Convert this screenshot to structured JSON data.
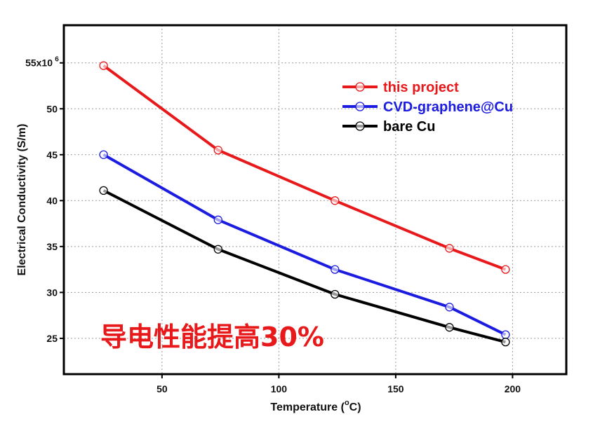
{
  "chart_data": {
    "type": "line",
    "xlabel": "Temperature (",
    "xlabel_unit_sup": "o",
    "xlabel_unit": "C)",
    "ylabel": "Electrical Conductivity (S/m)",
    "xlim": [
      8,
      223
    ],
    "ylim": [
      21.1,
      59.1
    ],
    "xticks": [
      50,
      100,
      150,
      200
    ],
    "yticks": [
      25,
      30,
      35,
      40,
      45,
      50,
      55
    ],
    "ytick_labels": [
      "25",
      "30",
      "35",
      "40",
      "45",
      "50",
      "55x10"
    ],
    "ytick_top_sup": "6",
    "grid": true,
    "legend_position": "top-right",
    "annotation": "导电性能提高30%",
    "series": [
      {
        "name": "this project",
        "color": "#e8191b",
        "x": [
          25,
          74,
          124,
          173,
          197
        ],
        "y": [
          54.7,
          45.5,
          40.0,
          34.8,
          32.5
        ]
      },
      {
        "name": "CVD-graphene@Cu",
        "color": "#1c1ce0",
        "x": [
          25,
          74,
          124,
          173,
          197
        ],
        "y": [
          45.0,
          37.9,
          32.5,
          28.4,
          25.4
        ]
      },
      {
        "name": "bare Cu",
        "color": "#000000",
        "x": [
          25,
          74,
          124,
          173,
          197
        ],
        "y": [
          41.1,
          34.7,
          29.8,
          26.2,
          24.6
        ]
      }
    ]
  }
}
